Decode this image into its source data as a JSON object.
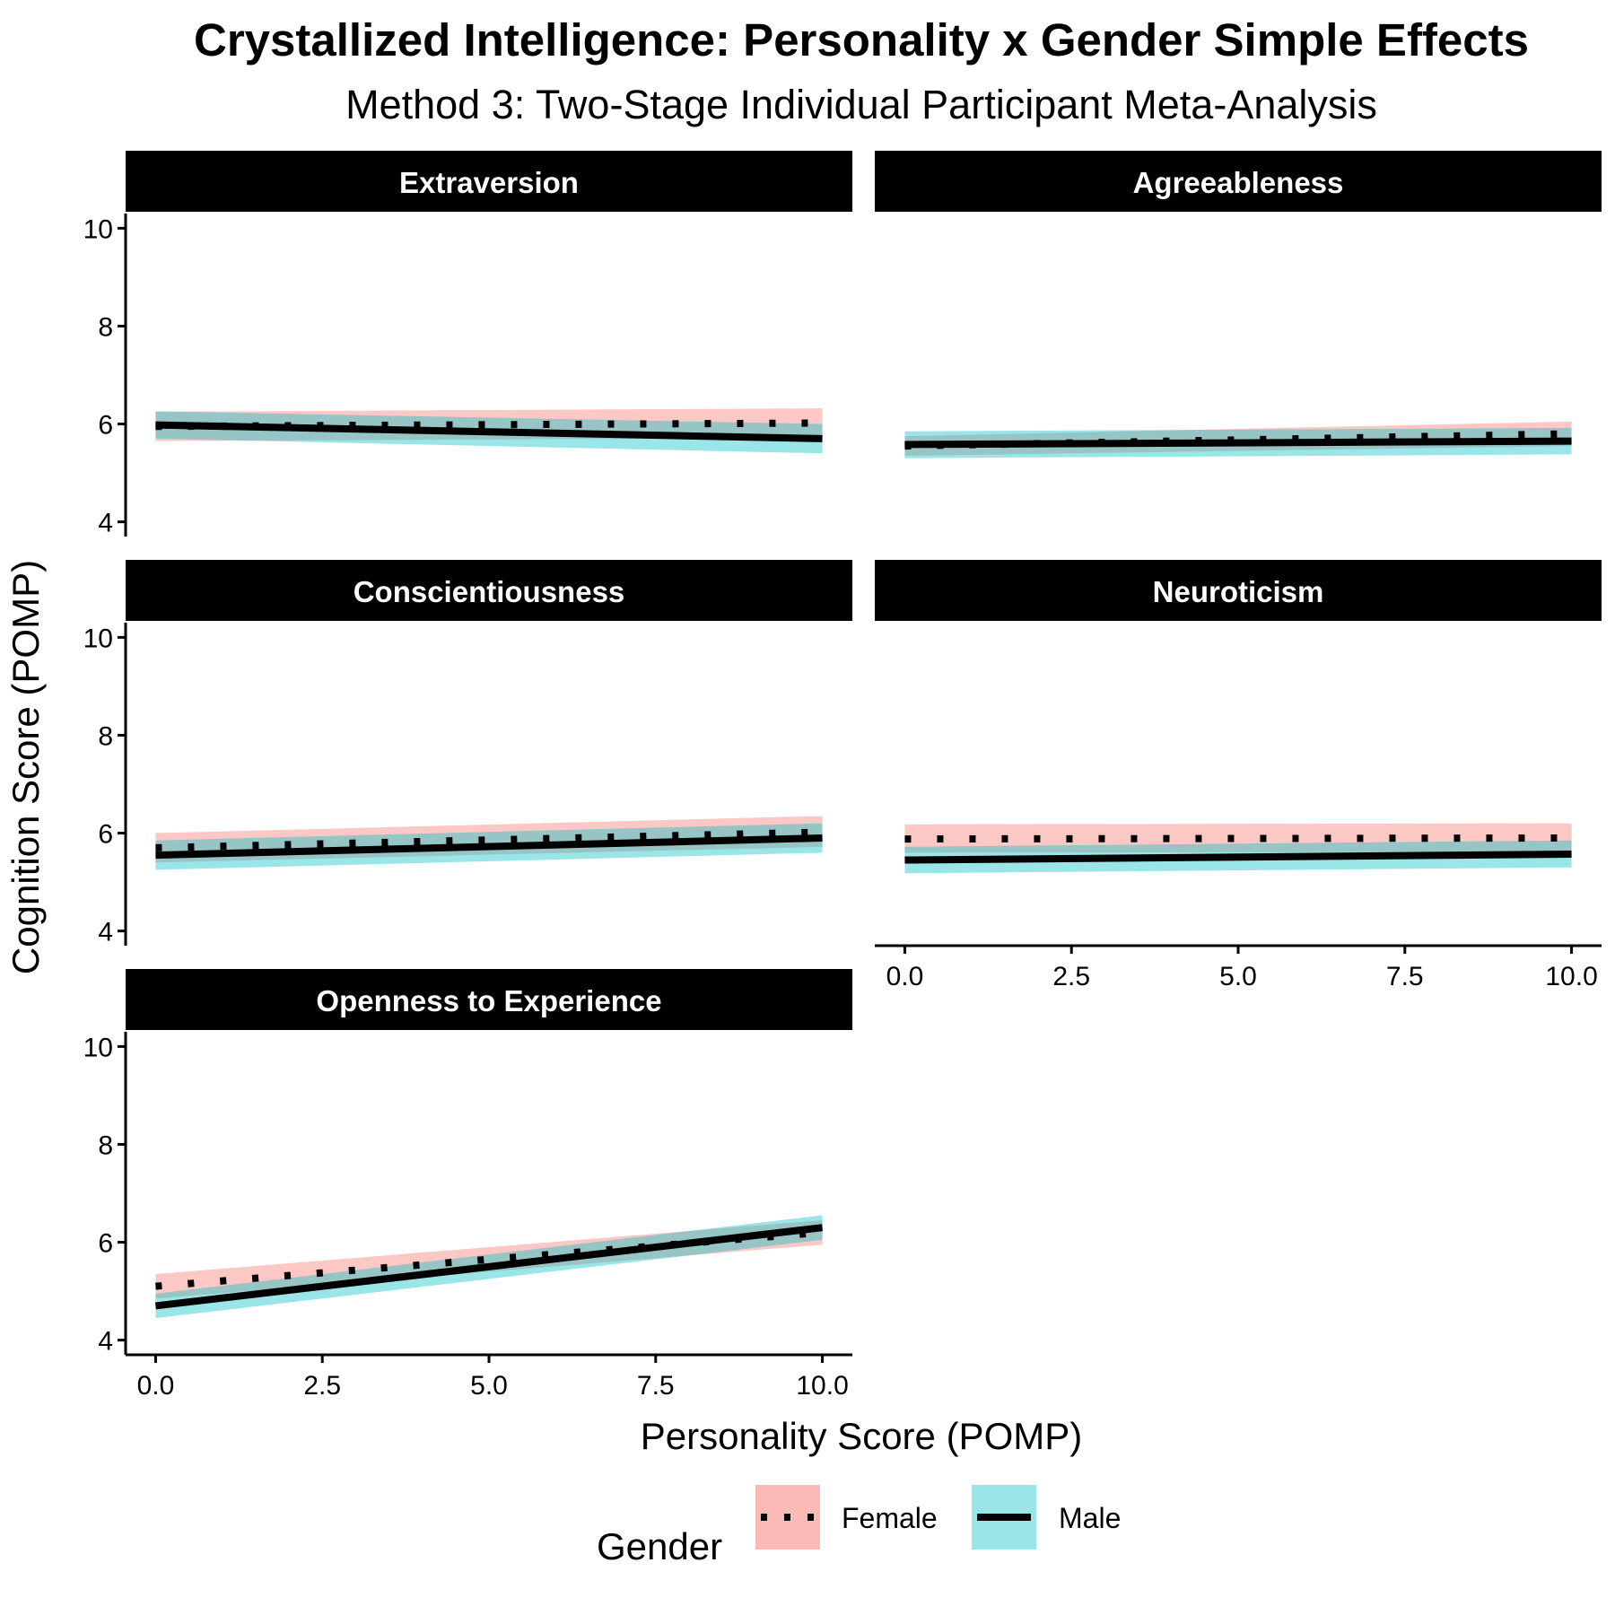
{
  "colors": {
    "female_fill": "#F8766D",
    "male_fill": "#00BFC4",
    "line": "#000000",
    "strip_bg": "#000000",
    "strip_text": "#FFFFFF"
  },
  "chart_data": {
    "type": "line",
    "title": "Crystallized Intelligence: Personality x Gender Simple Effects",
    "subtitle": "Method 3: Two-Stage Individual Participant Meta-Analysis",
    "xlabel": "Personality Score (POMP)",
    "ylabel": "Cognition Score (POMP)",
    "xlim": [
      -0.45,
      10.45
    ],
    "ylim": [
      3.7,
      10.3
    ],
    "xticks": [
      "0.0",
      "2.5",
      "5.0",
      "7.5",
      "10.0"
    ],
    "yticks": [
      "4",
      "6",
      "8",
      "10"
    ],
    "grid": false,
    "legend": {
      "title": "Gender",
      "position": "bottom",
      "items": [
        {
          "label": "Female",
          "linetype": "dotted",
          "fill": "#F8766D"
        },
        {
          "label": "Male",
          "linetype": "solid",
          "fill": "#00BFC4"
        }
      ]
    },
    "facets": [
      {
        "name": "Extraversion",
        "series": [
          {
            "name": "Female",
            "x": [
              0,
              10
            ],
            "y": [
              5.95,
              6.02
            ],
            "lower": [
              5.65,
              5.72
            ],
            "upper": [
              6.25,
              6.32
            ]
          },
          {
            "name": "Male",
            "x": [
              0,
              10
            ],
            "y": [
              5.98,
              5.7
            ],
            "lower": [
              5.7,
              5.4
            ],
            "upper": [
              6.26,
              6.0
            ]
          }
        ]
      },
      {
        "name": "Agreeableness",
        "series": [
          {
            "name": "Female",
            "x": [
              0,
              10
            ],
            "y": [
              5.55,
              5.8
            ],
            "lower": [
              5.35,
              5.55
            ],
            "upper": [
              5.75,
              6.05
            ]
          },
          {
            "name": "Male",
            "x": [
              0,
              10
            ],
            "y": [
              5.58,
              5.65
            ],
            "lower": [
              5.3,
              5.38
            ],
            "upper": [
              5.85,
              5.92
            ]
          }
        ]
      },
      {
        "name": "Conscientiousness",
        "series": [
          {
            "name": "Female",
            "x": [
              0,
              10
            ],
            "y": [
              5.7,
              6.02
            ],
            "lower": [
              5.4,
              5.72
            ],
            "upper": [
              6.0,
              6.35
            ]
          },
          {
            "name": "Male",
            "x": [
              0,
              10
            ],
            "y": [
              5.55,
              5.9
            ],
            "lower": [
              5.25,
              5.6
            ],
            "upper": [
              5.85,
              6.2
            ]
          }
        ]
      },
      {
        "name": "Neuroticism",
        "series": [
          {
            "name": "Female",
            "x": [
              0,
              10
            ],
            "y": [
              5.88,
              5.9
            ],
            "lower": [
              5.6,
              5.62
            ],
            "upper": [
              6.18,
              6.2
            ]
          },
          {
            "name": "Male",
            "x": [
              0,
              10
            ],
            "y": [
              5.45,
              5.57
            ],
            "lower": [
              5.18,
              5.3
            ],
            "upper": [
              5.72,
              5.85
            ]
          }
        ]
      },
      {
        "name": "Openness to Experience",
        "series": [
          {
            "name": "Female",
            "x": [
              0,
              10
            ],
            "y": [
              5.1,
              6.2
            ],
            "lower": [
              4.85,
              5.95
            ],
            "upper": [
              5.35,
              6.45
            ]
          },
          {
            "name": "Male",
            "x": [
              0,
              10
            ],
            "y": [
              4.7,
              6.3
            ],
            "lower": [
              4.45,
              6.05
            ],
            "upper": [
              4.95,
              6.55
            ]
          }
        ]
      }
    ]
  }
}
